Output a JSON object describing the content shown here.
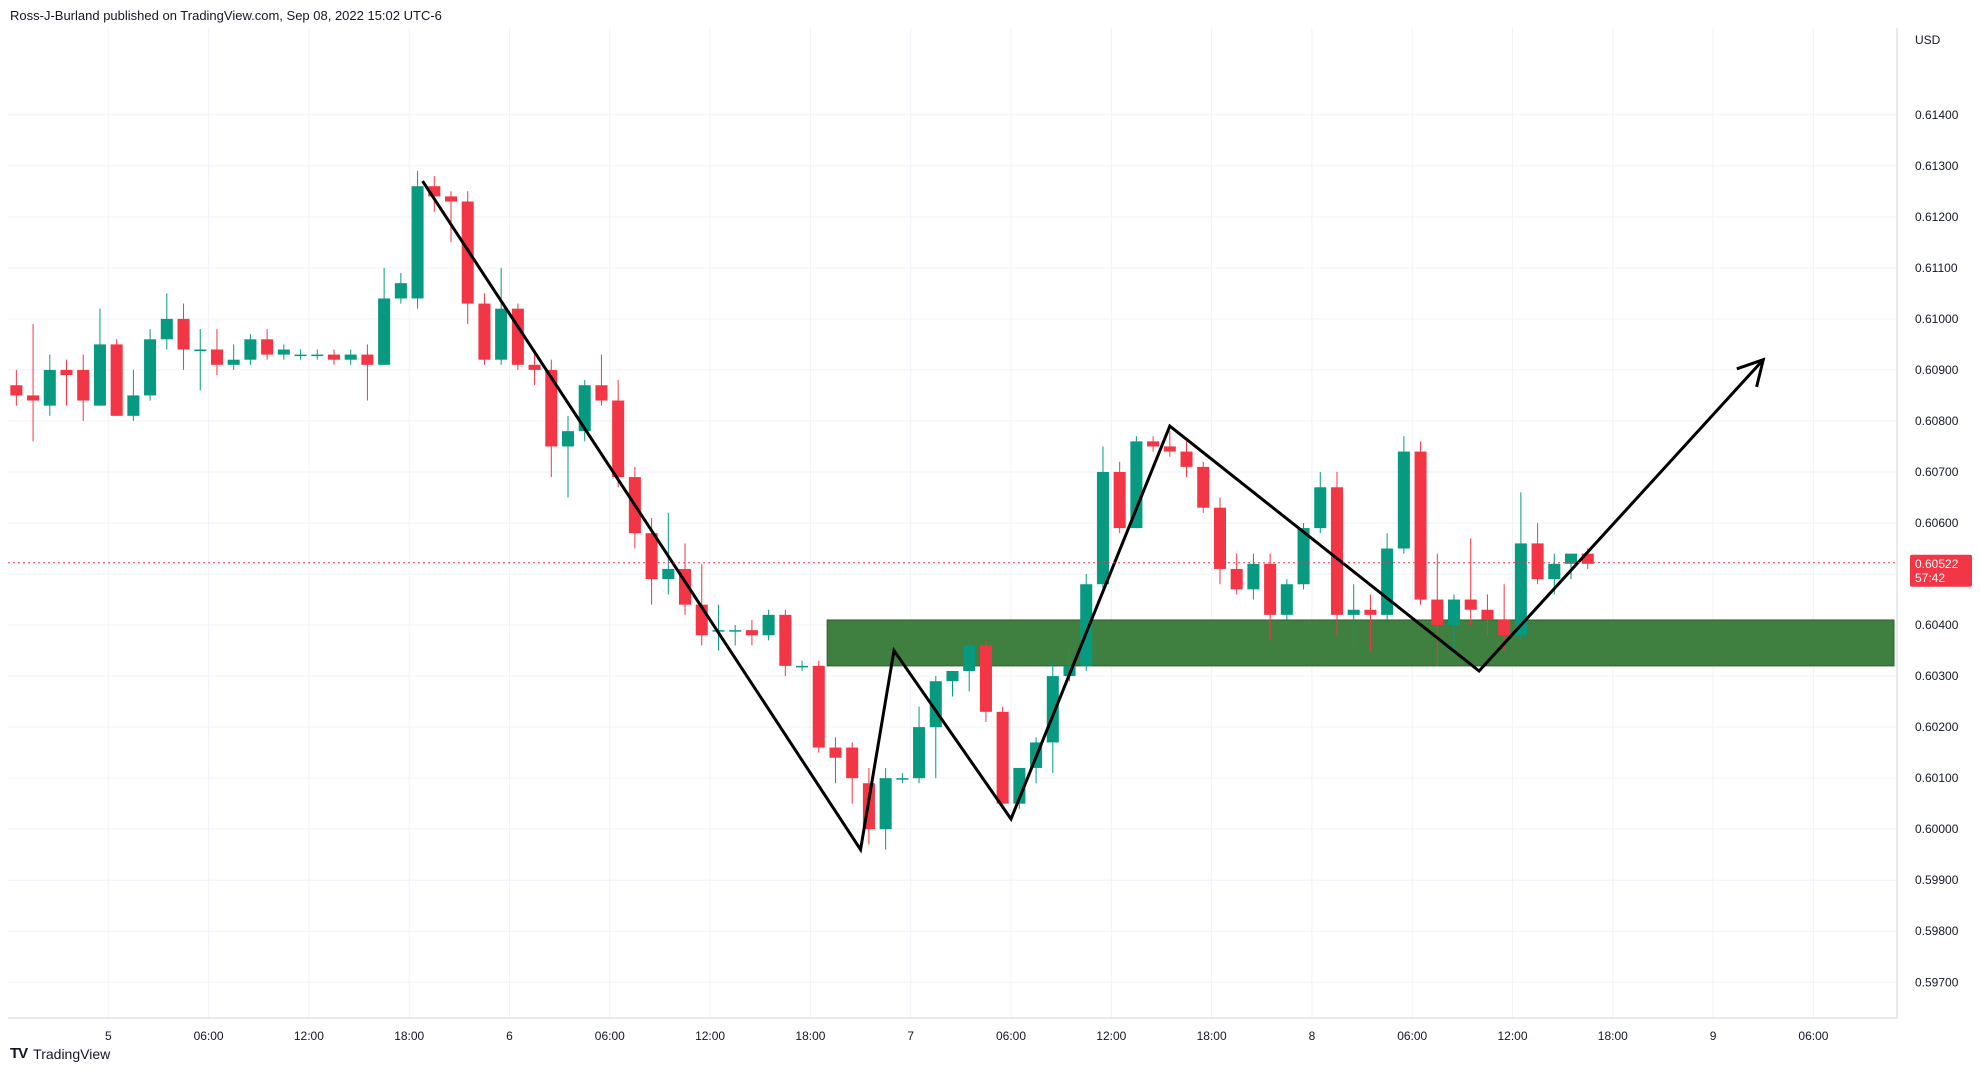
{
  "header": {
    "published": "Ross-J-Burland published on TradingView.com, Sep 08, 2022 15:02 UTC-6"
  },
  "footer": {
    "logo_mark": "TV",
    "logo_text": "TradingView"
  },
  "colors": {
    "up": "#089981",
    "down": "#f23645",
    "grid": "#f0f3fa",
    "zone": "#3f7f3f",
    "badge": "#f23645",
    "pattern_line": "#000000"
  },
  "chart_data": {
    "type": "candlestick",
    "currency_label": "USD",
    "y_ticks": [
      "0.61400",
      "0.61300",
      "0.61200",
      "0.61100",
      "0.61000",
      "0.60900",
      "0.60800",
      "0.60700",
      "0.60600",
      "0.60500",
      "0.60400",
      "0.60300",
      "0.60200",
      "0.60100",
      "0.60000",
      "0.59900",
      "0.59800",
      "0.59700"
    ],
    "y_tick_values": [
      0.614,
      0.613,
      0.612,
      0.611,
      0.61,
      0.609,
      0.608,
      0.607,
      0.606,
      0.605,
      0.604,
      0.603,
      0.602,
      0.601,
      0.6,
      0.599,
      0.598,
      0.597
    ],
    "ylim": [
      0.5963,
      0.6157
    ],
    "x_ticks": [
      "5",
      "06:00",
      "12:00",
      "18:00",
      "6",
      "06:00",
      "12:00",
      "18:00",
      "7",
      "06:00",
      "12:00",
      "18:00",
      "8",
      "06:00",
      "12:00",
      "18:00",
      "9",
      "06:00"
    ],
    "x_tick_index": [
      5.5,
      11.5,
      17.5,
      23.5,
      29.5,
      35.5,
      41.5,
      47.5,
      53.5,
      59.5,
      65.5,
      71.5,
      77.5,
      83.5,
      89.5,
      95.5,
      101.5,
      107.5
    ],
    "x_index_range": [
      -0.5,
      112.5
    ],
    "current_price": "0.60522",
    "current_price_value": 0.60522,
    "countdown": "57:42",
    "support_zone": {
      "low": 0.6032,
      "high": 0.6041,
      "start_index": 48.5
    },
    "pattern_path": [
      {
        "i": 24.3,
        "price": 0.6127
      },
      {
        "i": 50.5,
        "price": 0.5996
      },
      {
        "i": 52.5,
        "price": 0.6035
      },
      {
        "i": 59.5,
        "price": 0.6002
      },
      {
        "i": 69.0,
        "price": 0.6079
      },
      {
        "i": 87.5,
        "price": 0.6031
      },
      {
        "i": 104.5,
        "price": 0.6092
      }
    ],
    "candles": [
      {
        "o": 0.6087,
        "h": 0.609,
        "l": 0.6083,
        "c": 0.6085
      },
      {
        "o": 0.6085,
        "h": 0.6099,
        "l": 0.6076,
        "c": 0.6084
      },
      {
        "o": 0.6083,
        "h": 0.6093,
        "l": 0.6081,
        "c": 0.609
      },
      {
        "o": 0.609,
        "h": 0.6092,
        "l": 0.6083,
        "c": 0.6089
      },
      {
        "o": 0.609,
        "h": 0.6093,
        "l": 0.608,
        "c": 0.6084
      },
      {
        "o": 0.6083,
        "h": 0.6102,
        "l": 0.6083,
        "c": 0.6095
      },
      {
        "o": 0.6095,
        "h": 0.6096,
        "l": 0.6081,
        "c": 0.6081
      },
      {
        "o": 0.6081,
        "h": 0.609,
        "l": 0.608,
        "c": 0.6085
      },
      {
        "o": 0.6085,
        "h": 0.6098,
        "l": 0.6084,
        "c": 0.6096
      },
      {
        "o": 0.6096,
        "h": 0.6105,
        "l": 0.6094,
        "c": 0.61
      },
      {
        "o": 0.61,
        "h": 0.6103,
        "l": 0.609,
        "c": 0.6094
      },
      {
        "o": 0.6094,
        "h": 0.6098,
        "l": 0.6086,
        "c": 0.6094
      },
      {
        "o": 0.6094,
        "h": 0.6098,
        "l": 0.6089,
        "c": 0.6091
      },
      {
        "o": 0.6091,
        "h": 0.6095,
        "l": 0.609,
        "c": 0.6092
      },
      {
        "o": 0.6092,
        "h": 0.6097,
        "l": 0.6091,
        "c": 0.6096
      },
      {
        "o": 0.6096,
        "h": 0.6098,
        "l": 0.6092,
        "c": 0.6093
      },
      {
        "o": 0.6093,
        "h": 0.6095,
        "l": 0.6092,
        "c": 0.6094
      },
      {
        "o": 0.6093,
        "h": 0.6094,
        "l": 0.6092,
        "c": 0.6093
      },
      {
        "o": 0.6093,
        "h": 0.6094,
        "l": 0.6092,
        "c": 0.6093
      },
      {
        "o": 0.6093,
        "h": 0.6094,
        "l": 0.6091,
        "c": 0.6092
      },
      {
        "o": 0.6092,
        "h": 0.6094,
        "l": 0.6091,
        "c": 0.6093
      },
      {
        "o": 0.6093,
        "h": 0.6095,
        "l": 0.6084,
        "c": 0.6091
      },
      {
        "o": 0.6091,
        "h": 0.611,
        "l": 0.6091,
        "c": 0.6104
      },
      {
        "o": 0.6104,
        "h": 0.6109,
        "l": 0.6103,
        "c": 0.6107
      },
      {
        "o": 0.6104,
        "h": 0.6129,
        "l": 0.6102,
        "c": 0.6126
      },
      {
        "o": 0.6126,
        "h": 0.6128,
        "l": 0.6121,
        "c": 0.6124
      },
      {
        "o": 0.6124,
        "h": 0.6125,
        "l": 0.6115,
        "c": 0.6123
      },
      {
        "o": 0.6123,
        "h": 0.6125,
        "l": 0.6099,
        "c": 0.6103
      },
      {
        "o": 0.6103,
        "h": 0.6105,
        "l": 0.6091,
        "c": 0.6092
      },
      {
        "o": 0.6092,
        "h": 0.611,
        "l": 0.6091,
        "c": 0.6102
      },
      {
        "o": 0.6102,
        "h": 0.6103,
        "l": 0.609,
        "c": 0.6091
      },
      {
        "o": 0.6091,
        "h": 0.6093,
        "l": 0.6087,
        "c": 0.609
      },
      {
        "o": 0.609,
        "h": 0.6092,
        "l": 0.6069,
        "c": 0.6075
      },
      {
        "o": 0.6075,
        "h": 0.6081,
        "l": 0.6065,
        "c": 0.6078
      },
      {
        "o": 0.6078,
        "h": 0.6088,
        "l": 0.6076,
        "c": 0.6087
      },
      {
        "o": 0.6087,
        "h": 0.6093,
        "l": 0.6083,
        "c": 0.6084
      },
      {
        "o": 0.6084,
        "h": 0.6088,
        "l": 0.6067,
        "c": 0.6069
      },
      {
        "o": 0.6069,
        "h": 0.6071,
        "l": 0.6055,
        "c": 0.6058
      },
      {
        "o": 0.6058,
        "h": 0.6061,
        "l": 0.6044,
        "c": 0.6049
      },
      {
        "o": 0.6049,
        "h": 0.6062,
        "l": 0.6046,
        "c": 0.6051
      },
      {
        "o": 0.6051,
        "h": 0.6056,
        "l": 0.6042,
        "c": 0.6044
      },
      {
        "o": 0.6044,
        "h": 0.6052,
        "l": 0.6036,
        "c": 0.6038
      },
      {
        "o": 0.6039,
        "h": 0.6044,
        "l": 0.6035,
        "c": 0.6039
      },
      {
        "o": 0.6039,
        "h": 0.604,
        "l": 0.6036,
        "c": 0.6039
      },
      {
        "o": 0.6039,
        "h": 0.6041,
        "l": 0.6036,
        "c": 0.6038
      },
      {
        "o": 0.6038,
        "h": 0.6043,
        "l": 0.6037,
        "c": 0.6042
      },
      {
        "o": 0.6042,
        "h": 0.6043,
        "l": 0.603,
        "c": 0.6032
      },
      {
        "o": 0.6032,
        "h": 0.6033,
        "l": 0.6031,
        "c": 0.6032
      },
      {
        "o": 0.6032,
        "h": 0.6033,
        "l": 0.6015,
        "c": 0.6016
      },
      {
        "o": 0.6016,
        "h": 0.6018,
        "l": 0.6009,
        "c": 0.6014
      },
      {
        "o": 0.6016,
        "h": 0.6017,
        "l": 0.6005,
        "c": 0.601
      },
      {
        "o": 0.6009,
        "h": 0.6012,
        "l": 0.5997,
        "c": 0.6
      },
      {
        "o": 0.6,
        "h": 0.6012,
        "l": 0.5996,
        "c": 0.601
      },
      {
        "o": 0.601,
        "h": 0.6011,
        "l": 0.6009,
        "c": 0.601
      },
      {
        "o": 0.601,
        "h": 0.6024,
        "l": 0.6009,
        "c": 0.602
      },
      {
        "o": 0.602,
        "h": 0.603,
        "l": 0.601,
        "c": 0.6029
      },
      {
        "o": 0.6029,
        "h": 0.6031,
        "l": 0.6026,
        "c": 0.6031
      },
      {
        "o": 0.6031,
        "h": 0.6037,
        "l": 0.6027,
        "c": 0.6036
      },
      {
        "o": 0.6036,
        "h": 0.6037,
        "l": 0.6021,
        "c": 0.6023
      },
      {
        "o": 0.6023,
        "h": 0.6024,
        "l": 0.6004,
        "c": 0.6005
      },
      {
        "o": 0.6005,
        "h": 0.6012,
        "l": 0.6004,
        "c": 0.6012
      },
      {
        "o": 0.6012,
        "h": 0.6018,
        "l": 0.6009,
        "c": 0.6017
      },
      {
        "o": 0.6017,
        "h": 0.6033,
        "l": 0.6011,
        "c": 0.603
      },
      {
        "o": 0.603,
        "h": 0.6035,
        "l": 0.6029,
        "c": 0.6032
      },
      {
        "o": 0.6032,
        "h": 0.605,
        "l": 0.6031,
        "c": 0.6048
      },
      {
        "o": 0.6048,
        "h": 0.6075,
        "l": 0.6046,
        "c": 0.607
      },
      {
        "o": 0.607,
        "h": 0.6072,
        "l": 0.6058,
        "c": 0.6059
      },
      {
        "o": 0.6059,
        "h": 0.6077,
        "l": 0.6059,
        "c": 0.6076
      },
      {
        "o": 0.6076,
        "h": 0.6077,
        "l": 0.6074,
        "c": 0.6075
      },
      {
        "o": 0.6075,
        "h": 0.6078,
        "l": 0.6073,
        "c": 0.6074
      },
      {
        "o": 0.6074,
        "h": 0.6076,
        "l": 0.6069,
        "c": 0.6071
      },
      {
        "o": 0.6071,
        "h": 0.6072,
        "l": 0.6062,
        "c": 0.6063
      },
      {
        "o": 0.6063,
        "h": 0.6065,
        "l": 0.6048,
        "c": 0.6051
      },
      {
        "o": 0.6051,
        "h": 0.6054,
        "l": 0.6046,
        "c": 0.6047
      },
      {
        "o": 0.6047,
        "h": 0.6054,
        "l": 0.6045,
        "c": 0.6052
      },
      {
        "o": 0.6052,
        "h": 0.6054,
        "l": 0.6037,
        "c": 0.6042
      },
      {
        "o": 0.6042,
        "h": 0.6049,
        "l": 0.6041,
        "c": 0.6048
      },
      {
        "o": 0.6048,
        "h": 0.606,
        "l": 0.6047,
        "c": 0.6059
      },
      {
        "o": 0.6059,
        "h": 0.607,
        "l": 0.6058,
        "c": 0.6067
      },
      {
        "o": 0.6067,
        "h": 0.607,
        "l": 0.6038,
        "c": 0.6042
      },
      {
        "o": 0.6042,
        "h": 0.6048,
        "l": 0.6036,
        "c": 0.6043
      },
      {
        "o": 0.6043,
        "h": 0.6046,
        "l": 0.6035,
        "c": 0.6042
      },
      {
        "o": 0.6042,
        "h": 0.6058,
        "l": 0.6041,
        "c": 0.6055
      },
      {
        "o": 0.6055,
        "h": 0.6077,
        "l": 0.6054,
        "c": 0.6074
      },
      {
        "o": 0.6074,
        "h": 0.6076,
        "l": 0.6044,
        "c": 0.6045
      },
      {
        "o": 0.6045,
        "h": 0.6054,
        "l": 0.6032,
        "c": 0.604
      },
      {
        "o": 0.604,
        "h": 0.6046,
        "l": 0.6034,
        "c": 0.6045
      },
      {
        "o": 0.6045,
        "h": 0.6057,
        "l": 0.604,
        "c": 0.6043
      },
      {
        "o": 0.6043,
        "h": 0.6046,
        "l": 0.6038,
        "c": 0.6041
      },
      {
        "o": 0.6041,
        "h": 0.6048,
        "l": 0.6035,
        "c": 0.6038
      },
      {
        "o": 0.6038,
        "h": 0.6066,
        "l": 0.6037,
        "c": 0.6056
      },
      {
        "o": 0.6056,
        "h": 0.606,
        "l": 0.6048,
        "c": 0.6049
      },
      {
        "o": 0.6049,
        "h": 0.6054,
        "l": 0.6046,
        "c": 0.6052
      },
      {
        "o": 0.6052,
        "h": 0.6054,
        "l": 0.6049,
        "c": 0.6054
      },
      {
        "o": 0.6054,
        "h": 0.6055,
        "l": 0.6051,
        "c": 0.6052
      }
    ]
  }
}
